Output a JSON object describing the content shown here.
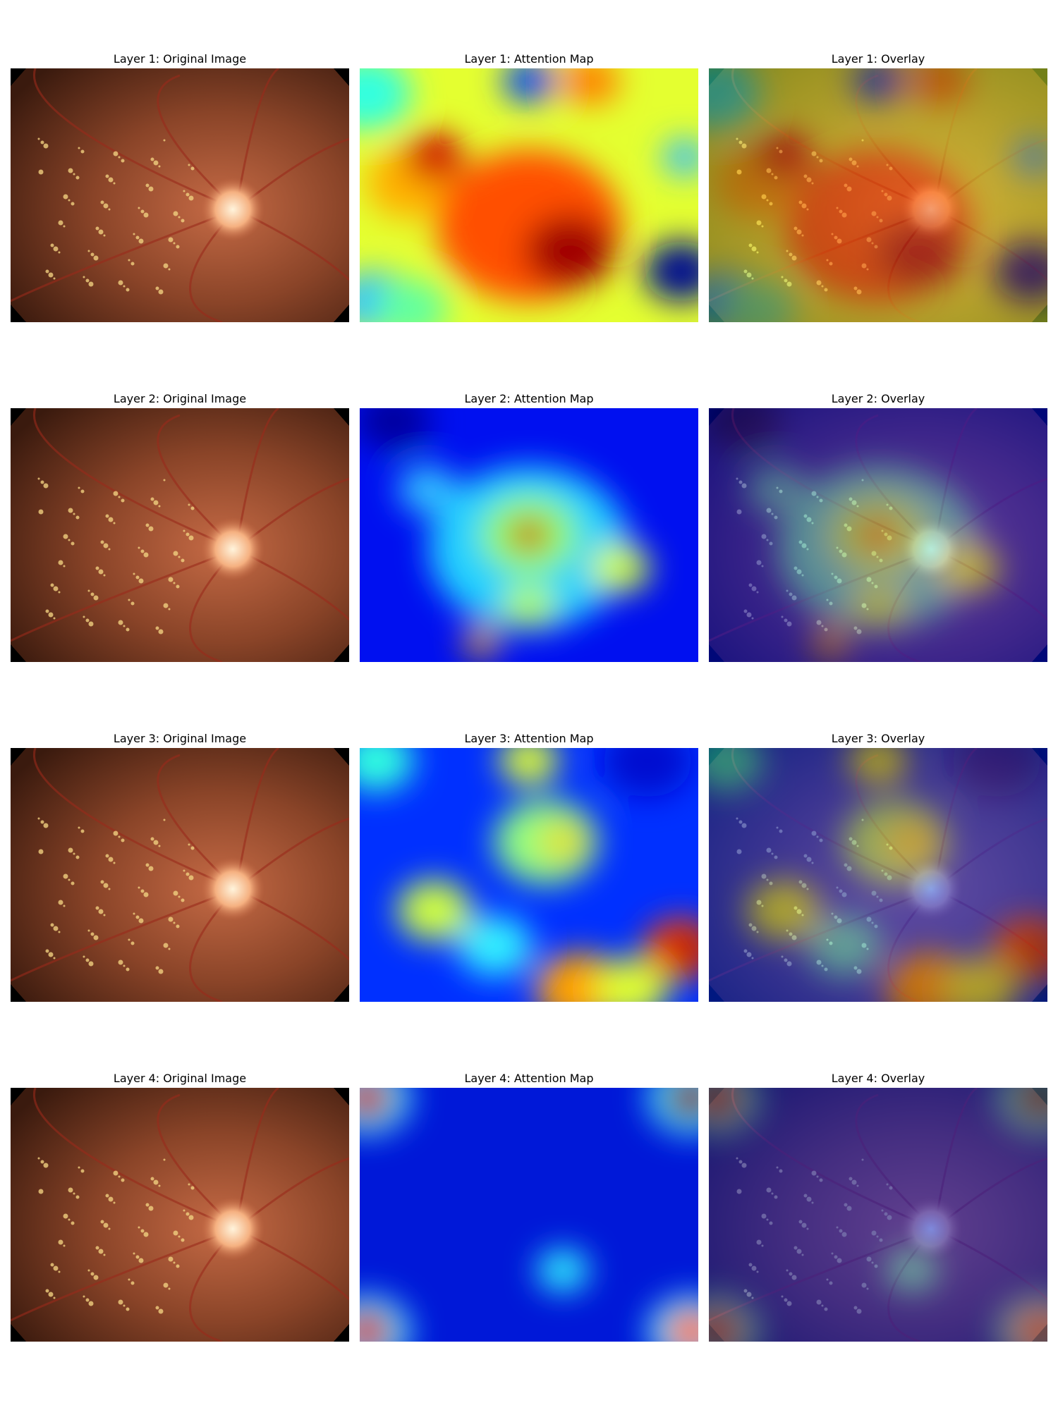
{
  "rows": [
    [
      "Layer 1: Original Image",
      "Layer 1: Attention Map",
      "Layer 1: Overlay"
    ],
    [
      "Layer 2: Original Image",
      "Layer 2: Attention Map",
      "Layer 2: Overlay"
    ],
    [
      "Layer 3: Original Image",
      "Layer 3: Attention Map",
      "Layer 3: Overlay"
    ],
    [
      "Layer 4: Original Image",
      "Layer 4: Attention Map",
      "Layer 4: Overlay"
    ]
  ]
}
